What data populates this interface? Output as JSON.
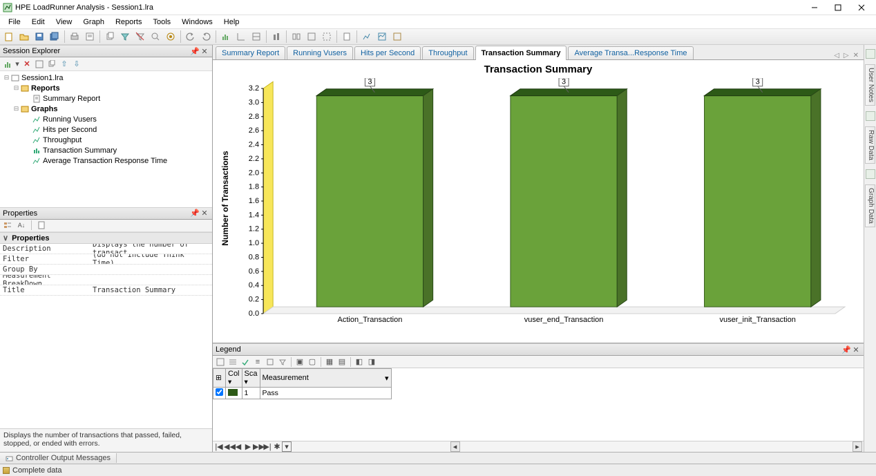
{
  "window": {
    "title": "HPE LoadRunner Analysis - Session1.lra"
  },
  "menu": [
    "File",
    "Edit",
    "View",
    "Graph",
    "Reports",
    "Tools",
    "Windows",
    "Help"
  ],
  "explorer": {
    "title": "Session Explorer",
    "root": "Session1.lra",
    "sections": {
      "reports_label": "Reports",
      "reports": [
        "Summary Report"
      ],
      "graphs_label": "Graphs",
      "graphs": [
        "Running Vusers",
        "Hits per Second",
        "Throughput",
        "Transaction Summary",
        "Average Transaction Response Time"
      ]
    }
  },
  "properties": {
    "title": "Properties",
    "section": "Properties",
    "rows": [
      {
        "k": "Description",
        "v": "Displays the number of transact"
      },
      {
        "k": "Filter",
        "v": "(do not Include Think Time)"
      },
      {
        "k": "Group By",
        "v": ""
      },
      {
        "k": "Measurement BreakDown",
        "v": ""
      },
      {
        "k": "Title",
        "v": "Transaction Summary"
      }
    ],
    "desc": "Displays the number of transactions that passed, failed, stopped, or ended with errors."
  },
  "tabs": [
    "Summary Report",
    "Running Vusers",
    "Hits per Second",
    "Throughput",
    "Transaction Summary",
    "Average Transa...Response Time"
  ],
  "active_tab": 4,
  "chart": {
    "title": "Transaction Summary",
    "ylabel": "Number of Transactions",
    "categories": [
      "Action_Transaction",
      "vuser_end_Transaction",
      "vuser_init_Transaction"
    ],
    "values": [
      3,
      3,
      3
    ],
    "ymax": 3.2,
    "ytick_step": 0.2,
    "bar_color_front": "#6aa23a",
    "bar_color_top": "#2d5a17",
    "bar_color_side": "#4a7228",
    "wall_color": "#f7e65a",
    "grid_color": "#d9d9d9",
    "text_color": "#000000",
    "value_box_border": "#606060",
    "value_box_bg": "#ffffff"
  },
  "legend": {
    "title": "Legend",
    "headers": [
      "",
      "Col",
      "Sca",
      "Measurement"
    ],
    "row": {
      "checked": true,
      "color": "#2d5a17",
      "scale": "1",
      "measurement": "Pass"
    }
  },
  "rightrail": [
    "User Notes",
    "Raw Data",
    "Graph Data"
  ],
  "bottom_tab": "Controller Output Messages",
  "status": "Complete data"
}
